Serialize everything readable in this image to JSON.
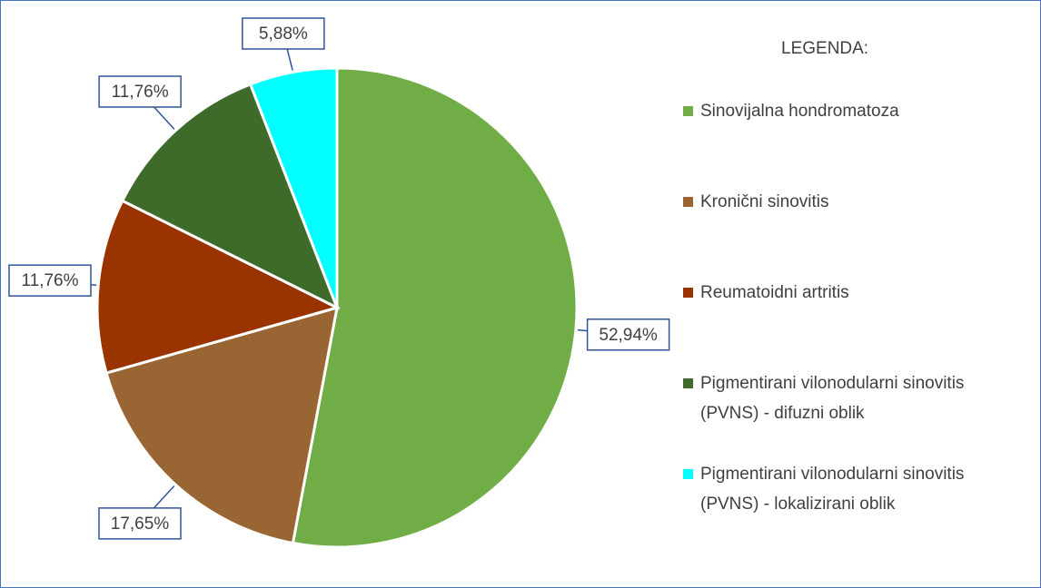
{
  "chart_data": {
    "type": "pie",
    "legend_title": "LEGENDA:",
    "categories": [
      "Sinovijalna hondromatoza",
      "Kronični sinovitis",
      "Reumatoidni artritis",
      "Pigmentirani vilonodularni sinovitis (PVNS) - difuzni oblik",
      "Pigmentirani vilonodularni sinovitis (PVNS) - lokalizirani oblik"
    ],
    "values": [
      52.94,
      17.65,
      11.76,
      11.76,
      5.88
    ],
    "value_labels": [
      "52,94%",
      "17,65%",
      "11,76%",
      "11,76%",
      "5,88%"
    ],
    "colors": [
      "#70ad47",
      "#996633",
      "#993300",
      "#3f6b2a",
      "#00ffff"
    ],
    "legend": "right"
  }
}
